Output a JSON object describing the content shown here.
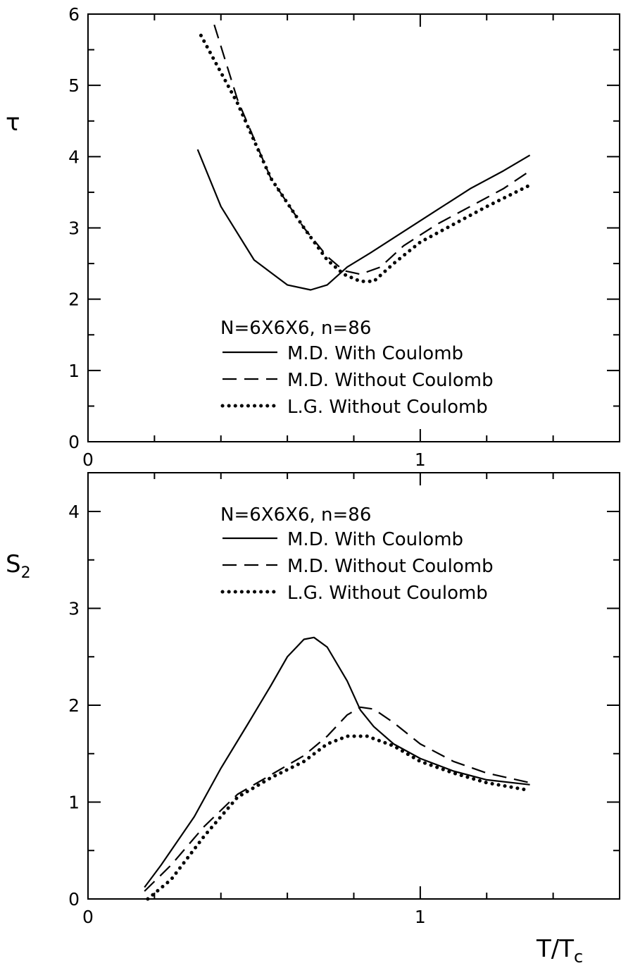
{
  "chart_data": [
    {
      "type": "line",
      "ylabel": "τ",
      "xlim": [
        0,
        1.6
      ],
      "ylim": [
        0,
        6
      ],
      "x_ticks": [
        "0",
        "1"
      ],
      "y_ticks": [
        "0",
        "1",
        "2",
        "3",
        "4",
        "5",
        "6"
      ],
      "legend_title": "N=6X6X6, n=86",
      "legend_placement": "lower-center",
      "series": [
        {
          "name": "M.D. With Coulomb",
          "style": "solid",
          "points": [
            [
              0.33,
              4.1
            ],
            [
              0.4,
              3.3
            ],
            [
              0.5,
              2.55
            ],
            [
              0.6,
              2.2
            ],
            [
              0.67,
              2.13
            ],
            [
              0.72,
              2.2
            ],
            [
              0.78,
              2.45
            ],
            [
              0.85,
              2.65
            ],
            [
              0.95,
              2.95
            ],
            [
              1.05,
              3.25
            ],
            [
              1.15,
              3.55
            ],
            [
              1.25,
              3.8
            ],
            [
              1.33,
              4.02
            ]
          ]
        },
        {
          "name": "M.D. Without Coulomb",
          "style": "dashed",
          "points": [
            [
              0.38,
              5.85
            ],
            [
              0.45,
              4.8
            ],
            [
              0.55,
              3.7
            ],
            [
              0.65,
              3.0
            ],
            [
              0.72,
              2.6
            ],
            [
              0.77,
              2.4
            ],
            [
              0.82,
              2.35
            ],
            [
              0.88,
              2.45
            ],
            [
              0.95,
              2.75
            ],
            [
              1.05,
              3.05
            ],
            [
              1.15,
              3.3
            ],
            [
              1.25,
              3.55
            ],
            [
              1.33,
              3.8
            ]
          ]
        },
        {
          "name": "L.G. Without Coulomb",
          "style": "dotted",
          "points": [
            [
              0.34,
              5.7
            ],
            [
              0.45,
              4.75
            ],
            [
              0.55,
              3.7
            ],
            [
              0.65,
              3.0
            ],
            [
              0.72,
              2.55
            ],
            [
              0.77,
              2.35
            ],
            [
              0.82,
              2.25
            ],
            [
              0.86,
              2.25
            ],
            [
              0.92,
              2.5
            ],
            [
              1.0,
              2.8
            ],
            [
              1.1,
              3.05
            ],
            [
              1.2,
              3.3
            ],
            [
              1.33,
              3.6
            ]
          ]
        }
      ]
    },
    {
      "type": "line",
      "ylabel": "S",
      "ylabel_sub": "2",
      "xlabel": "T/T",
      "xlabel_sub": "c",
      "xlim": [
        0,
        1.6
      ],
      "ylim": [
        0,
        4.4
      ],
      "x_ticks": [
        "0",
        "1"
      ],
      "y_ticks": [
        "0",
        "1",
        "2",
        "3",
        "4"
      ],
      "legend_title": "N=6X6X6, n=86",
      "legend_placement": "top-center",
      "series": [
        {
          "name": "M.D. With Coulomb",
          "style": "solid",
          "points": [
            [
              0.17,
              0.12
            ],
            [
              0.22,
              0.35
            ],
            [
              0.32,
              0.85
            ],
            [
              0.4,
              1.35
            ],
            [
              0.48,
              1.8
            ],
            [
              0.55,
              2.2
            ],
            [
              0.6,
              2.5
            ],
            [
              0.65,
              2.68
            ],
            [
              0.68,
              2.7
            ],
            [
              0.72,
              2.6
            ],
            [
              0.78,
              2.25
            ],
            [
              0.82,
              1.95
            ],
            [
              0.86,
              1.78
            ],
            [
              0.92,
              1.6
            ],
            [
              1.0,
              1.45
            ],
            [
              1.1,
              1.32
            ],
            [
              1.2,
              1.23
            ],
            [
              1.33,
              1.18
            ]
          ]
        },
        {
          "name": "M.D. Without Coulomb",
          "style": "dashed",
          "points": [
            [
              0.17,
              0.08
            ],
            [
              0.25,
              0.35
            ],
            [
              0.35,
              0.75
            ],
            [
              0.45,
              1.08
            ],
            [
              0.55,
              1.28
            ],
            [
              0.65,
              1.48
            ],
            [
              0.72,
              1.68
            ],
            [
              0.78,
              1.9
            ],
            [
              0.82,
              1.98
            ],
            [
              0.86,
              1.96
            ],
            [
              0.92,
              1.82
            ],
            [
              1.0,
              1.6
            ],
            [
              1.1,
              1.42
            ],
            [
              1.2,
              1.3
            ],
            [
              1.33,
              1.2
            ]
          ]
        },
        {
          "name": "L.G. Without Coulomb",
          "style": "dotted",
          "points": [
            [
              0.18,
              0.0
            ],
            [
              0.25,
              0.2
            ],
            [
              0.35,
              0.65
            ],
            [
              0.45,
              1.05
            ],
            [
              0.55,
              1.25
            ],
            [
              0.65,
              1.42
            ],
            [
              0.72,
              1.6
            ],
            [
              0.78,
              1.68
            ],
            [
              0.84,
              1.68
            ],
            [
              0.92,
              1.58
            ],
            [
              1.0,
              1.42
            ],
            [
              1.1,
              1.3
            ],
            [
              1.2,
              1.2
            ],
            [
              1.33,
              1.12
            ]
          ]
        }
      ]
    }
  ]
}
